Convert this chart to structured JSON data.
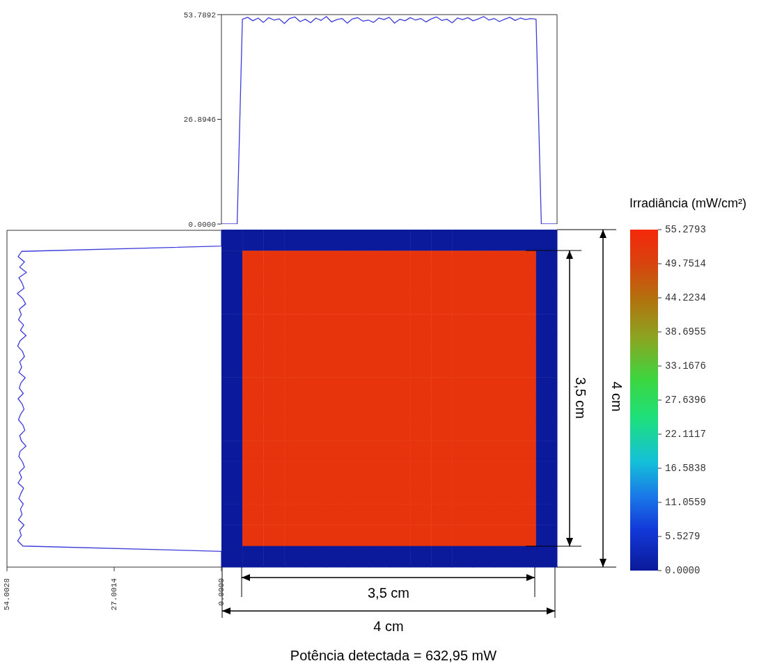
{
  "chart_data": [
    {
      "type": "line",
      "color": "#3b3bdb",
      "categories": [
        null,
        null,
        null,
        null,
        null,
        null,
        null,
        null,
        null,
        null,
        null,
        null,
        null,
        null,
        null,
        null,
        null,
        null,
        null,
        null,
        null,
        null,
        null,
        null,
        null,
        null,
        null,
        null,
        null,
        null,
        null,
        null,
        null,
        null,
        null,
        null,
        null,
        null,
        null,
        null,
        null,
        null,
        null,
        null,
        null,
        null,
        null,
        null,
        null,
        null,
        null,
        null,
        null,
        null,
        null,
        null,
        null,
        null,
        null,
        null,
        null,
        null,
        null,
        null,
        null
      ],
      "values": [
        0,
        0,
        0,
        0,
        52.6,
        53.1,
        52.2,
        52.9,
        51.8,
        53.0,
        52.4,
        52.7,
        51.5,
        52.8,
        53.2,
        52.0,
        52.6,
        51.7,
        52.9,
        52.3,
        53.3,
        51.9,
        52.5,
        52.8,
        51.6,
        52.7,
        53.0,
        52.1,
        52.4,
        51.8,
        52.9,
        52.5,
        53.1,
        51.6,
        52.6,
        52.2,
        53.0,
        52.4,
        52.8,
        51.9,
        52.7,
        53.2,
        52.3,
        52.6,
        51.7,
        52.9,
        52.5,
        53.0,
        52.2,
        52.7,
        53.3,
        52.4,
        52.8,
        52.0,
        52.6,
        53.1,
        52.3,
        52.9,
        52.5,
        52.8,
        52.6,
        0,
        0,
        0,
        0
      ],
      "ylim": [
        0,
        53.7892
      ],
      "yticks": [
        {
          "value": 0,
          "label": "0.0000"
        },
        26.8946,
        53.7892
      ],
      "tick_labels": "y"
    },
    {
      "type": "line",
      "orientation": "horizontal",
      "color": "#3b3bdb",
      "categories": [
        null,
        null,
        null,
        null,
        null,
        null,
        null,
        null,
        null,
        null,
        null,
        null,
        null,
        null,
        null,
        null,
        null,
        null,
        null,
        null,
        null,
        null,
        null,
        null,
        null,
        null,
        null,
        null,
        null,
        null,
        null,
        null,
        null,
        null,
        null,
        null,
        null,
        null,
        null,
        null,
        null,
        null,
        null,
        null,
        null,
        null,
        null,
        null,
        null,
        null,
        null,
        null,
        null,
        null,
        null,
        null,
        null,
        null,
        null,
        null,
        null,
        null,
        null,
        null,
        null
      ],
      "values": [
        0,
        0,
        0,
        0,
        50.3,
        51.2,
        49.6,
        50.8,
        49.1,
        51.0,
        50.2,
        49.7,
        51.4,
        50.0,
        49.3,
        50.9,
        50.4,
        51.1,
        49.8,
        50.6,
        49.2,
        50.7,
        51.3,
        50.1,
        49.6,
        50.8,
        50.3,
        51.0,
        49.4,
        50.5,
        50.9,
        49.9,
        51.2,
        50.2,
        49.7,
        50.6,
        51.1,
        50.0,
        49.5,
        50.8,
        50.4,
        49.2,
        50.7,
        51.0,
        50.1,
        49.6,
        50.9,
        50.3,
        51.2,
        49.8,
        50.5,
        51.0,
        49.9,
        50.6,
        50.2,
        51.1,
        49.7,
        50.8,
        50.4,
        51.3,
        50.0,
        0,
        0,
        0,
        0
      ],
      "xlim": [
        54.0028,
        0
      ],
      "xticks": [
        54.0028,
        27.0014,
        {
          "value": 0,
          "label": "0.0000"
        }
      ],
      "tick_labels": "x"
    },
    {
      "type": "heatmap",
      "categories": [
        null,
        null,
        null,
        null,
        null,
        null,
        null,
        null,
        null,
        null,
        null,
        null,
        null,
        null,
        null,
        null
      ],
      "y_categories": [
        null,
        null,
        null,
        null,
        null,
        null,
        null,
        null,
        null,
        null,
        null,
        null,
        null,
        null,
        null,
        null
      ],
      "cells": [
        [
          0,
          0,
          0,
          0,
          0,
          0,
          0,
          0,
          0,
          0,
          0,
          0,
          0,
          0,
          0,
          0
        ],
        [
          0,
          53,
          53,
          53,
          53,
          53,
          53,
          53,
          53,
          53,
          53,
          53,
          53,
          53,
          53,
          0
        ],
        [
          0,
          53,
          53,
          53,
          53,
          53,
          53,
          53,
          53,
          53,
          53,
          53,
          53,
          53,
          53,
          0
        ],
        [
          0,
          53,
          53,
          53,
          53,
          53,
          53,
          53,
          53,
          53,
          53,
          53,
          53,
          53,
          53,
          0
        ],
        [
          0,
          53,
          53,
          53,
          53,
          53,
          53,
          53,
          53,
          53,
          53,
          53,
          53,
          53,
          53,
          0
        ],
        [
          0,
          53,
          53,
          53,
          53,
          53,
          53,
          53,
          53,
          53,
          53,
          53,
          53,
          53,
          53,
          0
        ],
        [
          0,
          53,
          53,
          53,
          53,
          53,
          53,
          53,
          53,
          53,
          53,
          53,
          53,
          53,
          53,
          0
        ],
        [
          0,
          53,
          53,
          53,
          53,
          53,
          53,
          53,
          53,
          53,
          53,
          53,
          53,
          53,
          53,
          0
        ],
        [
          0,
          53,
          53,
          53,
          53,
          53,
          53,
          53,
          53,
          53,
          53,
          53,
          53,
          53,
          53,
          0
        ],
        [
          0,
          53,
          53,
          53,
          53,
          53,
          53,
          53,
          53,
          53,
          53,
          53,
          53,
          53,
          53,
          0
        ],
        [
          0,
          53,
          53,
          53,
          53,
          53,
          53,
          53,
          53,
          53,
          53,
          53,
          53,
          53,
          53,
          0
        ],
        [
          0,
          53,
          53,
          53,
          53,
          53,
          53,
          53,
          53,
          53,
          53,
          53,
          53,
          53,
          53,
          0
        ],
        [
          0,
          53,
          53,
          53,
          53,
          53,
          53,
          53,
          53,
          53,
          53,
          53,
          53,
          53,
          53,
          0
        ],
        [
          0,
          53,
          53,
          53,
          53,
          53,
          53,
          53,
          53,
          53,
          53,
          53,
          53,
          53,
          53,
          0
        ],
        [
          0,
          53,
          53,
          53,
          53,
          53,
          53,
          53,
          53,
          53,
          53,
          53,
          53,
          53,
          53,
          0
        ],
        [
          0,
          0,
          0,
          0,
          0,
          0,
          0,
          0,
          0,
          0,
          0,
          0,
          0,
          0,
          0,
          0
        ]
      ],
      "clim": [
        0,
        55.2793
      ],
      "cticks": [
        {
          "value": 0,
          "label": "0.0000"
        },
        5.5279,
        11.0559,
        16.5838,
        22.1117,
        27.6396,
        33.1676,
        38.6955,
        44.2234,
        49.7514,
        55.2793
      ],
      "clabel": "Irradiância (mW/cm²)",
      "annotations": [
        "3,5 cm",
        "4 cm",
        "3,5 cm",
        "4 cm",
        "Potência detectada = 632,95 mW"
      ]
    }
  ]
}
